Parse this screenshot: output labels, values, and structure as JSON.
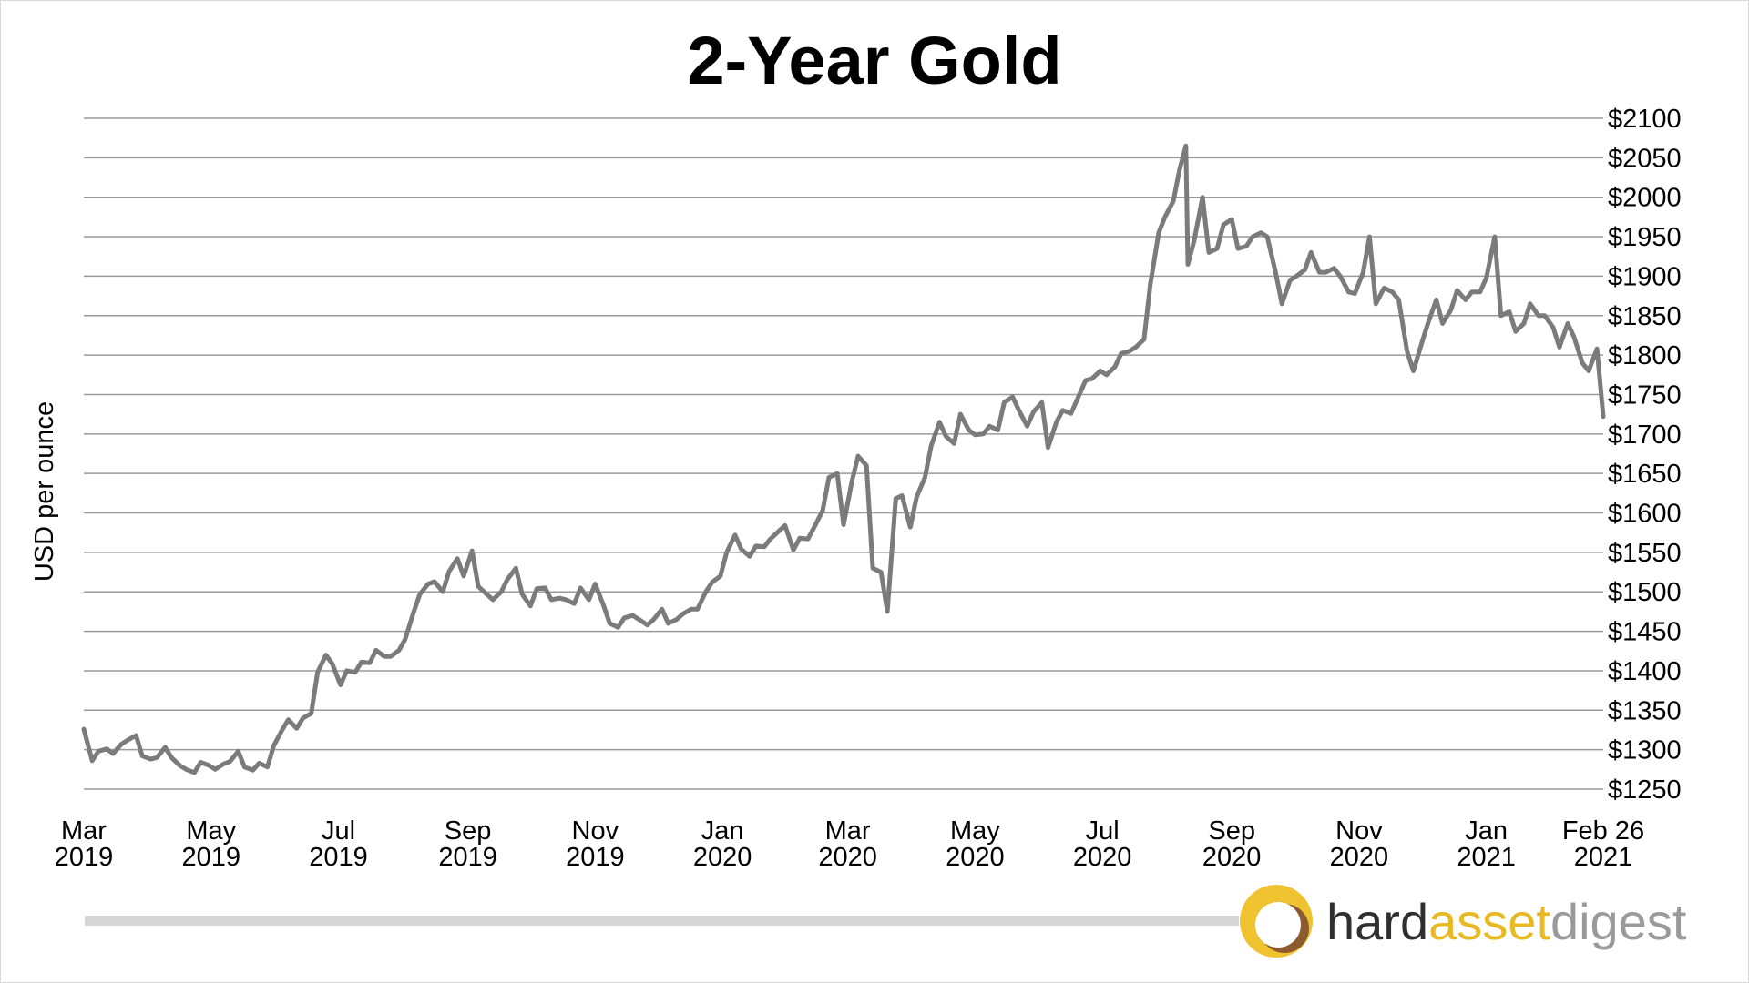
{
  "chart_data": {
    "type": "line",
    "title": "2-Year Gold",
    "xlabel": "",
    "ylabel": "USD per ounce",
    "x_ticks": [
      {
        "month": "Mar",
        "year": "2019",
        "date": "2019-03-01"
      },
      {
        "month": "May",
        "year": "2019",
        "date": "2019-05-01"
      },
      {
        "month": "Jul",
        "year": "2019",
        "date": "2019-07-01"
      },
      {
        "month": "Sep",
        "year": "2019",
        "date": "2019-09-01"
      },
      {
        "month": "Nov",
        "year": "2019",
        "date": "2019-11-01"
      },
      {
        "month": "Jan",
        "year": "2020",
        "date": "2020-01-01"
      },
      {
        "month": "Mar",
        "year": "2020",
        "date": "2020-03-01"
      },
      {
        "month": "May",
        "year": "2020",
        "date": "2020-05-01"
      },
      {
        "month": "Jul",
        "year": "2020",
        "date": "2020-07-01"
      },
      {
        "month": "Sep",
        "year": "2020",
        "date": "2020-09-01"
      },
      {
        "month": "Nov",
        "year": "2020",
        "date": "2020-11-01"
      },
      {
        "month": "Jan",
        "year": "2021",
        "date": "2021-01-01"
      },
      {
        "month": "Feb 26",
        "year": "2021",
        "date": "2021-02-26"
      }
    ],
    "y_ticks": [
      "$2100",
      "$2050",
      "$2000",
      "$1950",
      "$1900",
      "$1850",
      "$1800",
      "$1750",
      "$1700",
      "$1650",
      "$1600",
      "$1550",
      "$1500",
      "$1450",
      "$1400",
      "$1350",
      "$1300",
      "$1250"
    ],
    "ylim": [
      1250,
      2100
    ],
    "xlim": [
      "2019-03-01",
      "2021-02-26"
    ],
    "grid": true,
    "series": [
      {
        "color": "#7b7b7b",
        "points": [
          [
            "2019-03-01",
            1326
          ],
          [
            "2019-03-05",
            1286
          ],
          [
            "2019-03-08",
            1298
          ],
          [
            "2019-03-12",
            1301
          ],
          [
            "2019-03-15",
            1295
          ],
          [
            "2019-03-19",
            1307
          ],
          [
            "2019-03-22",
            1312
          ],
          [
            "2019-03-26",
            1318
          ],
          [
            "2019-03-29",
            1292
          ],
          [
            "2019-04-02",
            1288
          ],
          [
            "2019-04-05",
            1290
          ],
          [
            "2019-04-09",
            1303
          ],
          [
            "2019-04-12",
            1290
          ],
          [
            "2019-04-16",
            1280
          ],
          [
            "2019-04-19",
            1275
          ],
          [
            "2019-04-23",
            1271
          ],
          [
            "2019-04-26",
            1284
          ],
          [
            "2019-04-30",
            1280
          ],
          [
            "2019-05-03",
            1275
          ],
          [
            "2019-05-07",
            1282
          ],
          [
            "2019-05-10",
            1285
          ],
          [
            "2019-05-14",
            1298
          ],
          [
            "2019-05-17",
            1278
          ],
          [
            "2019-05-21",
            1274
          ],
          [
            "2019-05-24",
            1283
          ],
          [
            "2019-05-28",
            1278
          ],
          [
            "2019-05-31",
            1305
          ],
          [
            "2019-06-04",
            1325
          ],
          [
            "2019-06-07",
            1338
          ],
          [
            "2019-06-11",
            1327
          ],
          [
            "2019-06-14",
            1340
          ],
          [
            "2019-06-18",
            1346
          ],
          [
            "2019-06-21",
            1398
          ],
          [
            "2019-06-25",
            1420
          ],
          [
            "2019-06-28",
            1409
          ],
          [
            "2019-07-02",
            1382
          ],
          [
            "2019-07-05",
            1400
          ],
          [
            "2019-07-09",
            1398
          ],
          [
            "2019-07-12",
            1411
          ],
          [
            "2019-07-16",
            1410
          ],
          [
            "2019-07-19",
            1426
          ],
          [
            "2019-07-23",
            1418
          ],
          [
            "2019-07-26",
            1418
          ],
          [
            "2019-07-30",
            1426
          ],
          [
            "2019-08-02",
            1440
          ],
          [
            "2019-08-06",
            1474
          ],
          [
            "2019-08-09",
            1497
          ],
          [
            "2019-08-13",
            1510
          ],
          [
            "2019-08-16",
            1513
          ],
          [
            "2019-08-20",
            1500
          ],
          [
            "2019-08-23",
            1526
          ],
          [
            "2019-08-27",
            1542
          ],
          [
            "2019-08-30",
            1520
          ],
          [
            "2019-09-03",
            1552
          ],
          [
            "2019-09-06",
            1507
          ],
          [
            "2019-09-10",
            1497
          ],
          [
            "2019-09-13",
            1490
          ],
          [
            "2019-09-17",
            1500
          ],
          [
            "2019-09-20",
            1516
          ],
          [
            "2019-09-24",
            1530
          ],
          [
            "2019-09-27",
            1497
          ],
          [
            "2019-10-01",
            1482
          ],
          [
            "2019-10-04",
            1504
          ],
          [
            "2019-10-08",
            1505
          ],
          [
            "2019-10-11",
            1490
          ],
          [
            "2019-10-15",
            1492
          ],
          [
            "2019-10-18",
            1490
          ],
          [
            "2019-10-22",
            1485
          ],
          [
            "2019-10-25",
            1505
          ],
          [
            "2019-10-29",
            1490
          ],
          [
            "2019-11-01",
            1510
          ],
          [
            "2019-11-05",
            1483
          ],
          [
            "2019-11-08",
            1460
          ],
          [
            "2019-11-12",
            1455
          ],
          [
            "2019-11-15",
            1467
          ],
          [
            "2019-11-19",
            1470
          ],
          [
            "2019-11-22",
            1465
          ],
          [
            "2019-11-26",
            1458
          ],
          [
            "2019-11-29",
            1465
          ],
          [
            "2019-12-03",
            1478
          ],
          [
            "2019-12-06",
            1460
          ],
          [
            "2019-12-10",
            1465
          ],
          [
            "2019-12-13",
            1472
          ],
          [
            "2019-12-17",
            1478
          ],
          [
            "2019-12-20",
            1478
          ],
          [
            "2019-12-24",
            1500
          ],
          [
            "2019-12-27",
            1512
          ],
          [
            "2019-12-31",
            1520
          ],
          [
            "2020-01-03",
            1550
          ],
          [
            "2020-01-07",
            1572
          ],
          [
            "2020-01-10",
            1554
          ],
          [
            "2020-01-14",
            1545
          ],
          [
            "2020-01-17",
            1558
          ],
          [
            "2020-01-21",
            1557
          ],
          [
            "2020-01-24",
            1567
          ],
          [
            "2020-01-28",
            1577
          ],
          [
            "2020-01-31",
            1584
          ],
          [
            "2020-02-04",
            1553
          ],
          [
            "2020-02-07",
            1568
          ],
          [
            "2020-02-11",
            1567
          ],
          [
            "2020-02-14",
            1582
          ],
          [
            "2020-02-18",
            1603
          ],
          [
            "2020-02-21",
            1645
          ],
          [
            "2020-02-25",
            1650
          ],
          [
            "2020-02-28",
            1585
          ],
          [
            "2020-03-03",
            1640
          ],
          [
            "2020-03-06",
            1672
          ],
          [
            "2020-03-10",
            1660
          ],
          [
            "2020-03-13",
            1530
          ],
          [
            "2020-03-17",
            1525
          ],
          [
            "2020-03-20",
            1475
          ],
          [
            "2020-03-24",
            1618
          ],
          [
            "2020-03-27",
            1622
          ],
          [
            "2020-03-31",
            1582
          ],
          [
            "2020-04-03",
            1620
          ],
          [
            "2020-04-07",
            1645
          ],
          [
            "2020-04-10",
            1685
          ],
          [
            "2020-04-14",
            1715
          ],
          [
            "2020-04-17",
            1697
          ],
          [
            "2020-04-21",
            1688
          ],
          [
            "2020-04-24",
            1725
          ],
          [
            "2020-04-28",
            1705
          ],
          [
            "2020-05-01",
            1699
          ],
          [
            "2020-05-05",
            1700
          ],
          [
            "2020-05-08",
            1710
          ],
          [
            "2020-05-12",
            1705
          ],
          [
            "2020-05-15",
            1740
          ],
          [
            "2020-05-19",
            1747
          ],
          [
            "2020-05-22",
            1730
          ],
          [
            "2020-05-26",
            1710
          ],
          [
            "2020-05-29",
            1728
          ],
          [
            "2020-06-02",
            1740
          ],
          [
            "2020-06-05",
            1683
          ],
          [
            "2020-06-09",
            1715
          ],
          [
            "2020-06-12",
            1730
          ],
          [
            "2020-06-16",
            1726
          ],
          [
            "2020-06-19",
            1744
          ],
          [
            "2020-06-23",
            1768
          ],
          [
            "2020-06-26",
            1770
          ],
          [
            "2020-06-30",
            1780
          ],
          [
            "2020-07-03",
            1775
          ],
          [
            "2020-07-07",
            1785
          ],
          [
            "2020-07-10",
            1802
          ],
          [
            "2020-07-14",
            1805
          ],
          [
            "2020-07-17",
            1810
          ],
          [
            "2020-07-21",
            1820
          ],
          [
            "2020-07-24",
            1890
          ],
          [
            "2020-07-28",
            1955
          ],
          [
            "2020-07-31",
            1975
          ],
          [
            "2020-08-04",
            1995
          ],
          [
            "2020-08-07",
            2035
          ],
          [
            "2020-08-10",
            2065
          ],
          [
            "2020-08-11",
            1915
          ],
          [
            "2020-08-14",
            1945
          ],
          [
            "2020-08-18",
            2000
          ],
          [
            "2020-08-21",
            1930
          ],
          [
            "2020-08-25",
            1935
          ],
          [
            "2020-08-28",
            1965
          ],
          [
            "2020-09-01",
            1972
          ],
          [
            "2020-09-04",
            1935
          ],
          [
            "2020-09-08",
            1938
          ],
          [
            "2020-09-11",
            1950
          ],
          [
            "2020-09-15",
            1955
          ],
          [
            "2020-09-18",
            1950
          ],
          [
            "2020-09-22",
            1905
          ],
          [
            "2020-09-25",
            1865
          ],
          [
            "2020-09-29",
            1895
          ],
          [
            "2020-10-02",
            1900
          ],
          [
            "2020-10-06",
            1908
          ],
          [
            "2020-10-09",
            1930
          ],
          [
            "2020-10-13",
            1905
          ],
          [
            "2020-10-16",
            1905
          ],
          [
            "2020-10-20",
            1910
          ],
          [
            "2020-10-23",
            1900
          ],
          [
            "2020-10-27",
            1880
          ],
          [
            "2020-10-30",
            1878
          ],
          [
            "2020-11-03",
            1905
          ],
          [
            "2020-11-06",
            1950
          ],
          [
            "2020-11-09",
            1865
          ],
          [
            "2020-11-13",
            1885
          ],
          [
            "2020-11-17",
            1880
          ],
          [
            "2020-11-20",
            1870
          ],
          [
            "2020-11-24",
            1805
          ],
          [
            "2020-11-27",
            1780
          ],
          [
            "2020-12-01",
            1815
          ],
          [
            "2020-12-04",
            1840
          ],
          [
            "2020-12-08",
            1870
          ],
          [
            "2020-12-11",
            1840
          ],
          [
            "2020-12-15",
            1857
          ],
          [
            "2020-12-18",
            1882
          ],
          [
            "2020-12-22",
            1870
          ],
          [
            "2020-12-25",
            1880
          ],
          [
            "2020-12-29",
            1880
          ],
          [
            "2021-01-01",
            1898
          ],
          [
            "2021-01-05",
            1950
          ],
          [
            "2021-01-08",
            1850
          ],
          [
            "2021-01-12",
            1855
          ],
          [
            "2021-01-15",
            1830
          ],
          [
            "2021-01-19",
            1840
          ],
          [
            "2021-01-22",
            1865
          ],
          [
            "2021-01-26",
            1850
          ],
          [
            "2021-01-29",
            1850
          ],
          [
            "2021-02-02",
            1835
          ],
          [
            "2021-02-05",
            1810
          ],
          [
            "2021-02-09",
            1840
          ],
          [
            "2021-02-12",
            1823
          ],
          [
            "2021-02-16",
            1790
          ],
          [
            "2021-02-19",
            1780
          ],
          [
            "2021-02-23",
            1808
          ],
          [
            "2021-02-26",
            1722
          ]
        ]
      }
    ]
  },
  "branding": {
    "part1": "hard",
    "part2": "asset",
    "part3": "digest",
    "color_dark": "#2f2f2f",
    "color_accent": "#e8b923",
    "color_light": "#9a9a9a"
  }
}
